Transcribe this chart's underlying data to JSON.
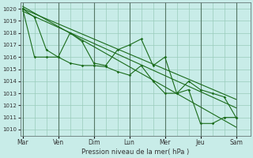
{
  "xlabel": "Pression niveau de la mer( hPa )",
  "bg_color": "#c8ece8",
  "grid_color": "#99ccbb",
  "line_color": "#1a6b1a",
  "ylim": [
    1009.5,
    1020.5
  ],
  "xlim": [
    -0.2,
    19.2
  ],
  "yticks": [
    1010,
    1011,
    1012,
    1013,
    1014,
    1015,
    1016,
    1017,
    1018,
    1019,
    1020
  ],
  "day_labels": [
    "Mar",
    "Ven",
    "Dim",
    "Lun",
    "Mer",
    "Jeu",
    "Sam"
  ],
  "day_positions": [
    0,
    3,
    6,
    9,
    12,
    15,
    18
  ],
  "series1_x": [
    0,
    1,
    2,
    3,
    4,
    5,
    6,
    7,
    8,
    9,
    10,
    11,
    12,
    13,
    14,
    15,
    16,
    17,
    18
  ],
  "series1_y": [
    1020.0,
    1019.3,
    1016.6,
    1016.0,
    1018.0,
    1017.3,
    1015.5,
    1015.3,
    1016.6,
    1017.0,
    1017.5,
    1015.3,
    1016.0,
    1013.0,
    1014.0,
    1013.3,
    1013.0,
    1012.7,
    1011.0
  ],
  "series2_x": [
    0,
    1,
    2,
    3,
    4,
    5,
    6,
    7,
    8,
    9,
    10,
    11,
    12,
    13,
    14,
    15,
    16,
    17,
    18
  ],
  "series2_y": [
    1020.0,
    1016.0,
    1016.0,
    1016.0,
    1015.5,
    1015.3,
    1015.3,
    1015.2,
    1014.8,
    1014.5,
    1015.3,
    1014.0,
    1013.0,
    1013.0,
    1013.3,
    1010.5,
    1010.5,
    1011.0,
    1011.0
  ],
  "trend1_x": [
    0,
    18
  ],
  "trend1_y": [
    1020.0,
    1012.5
  ],
  "trend2_x": [
    0,
    18
  ],
  "trend2_y": [
    1019.8,
    1011.8
  ],
  "trend3_x": [
    0,
    18
  ],
  "trend3_y": [
    1020.2,
    1010.2
  ]
}
